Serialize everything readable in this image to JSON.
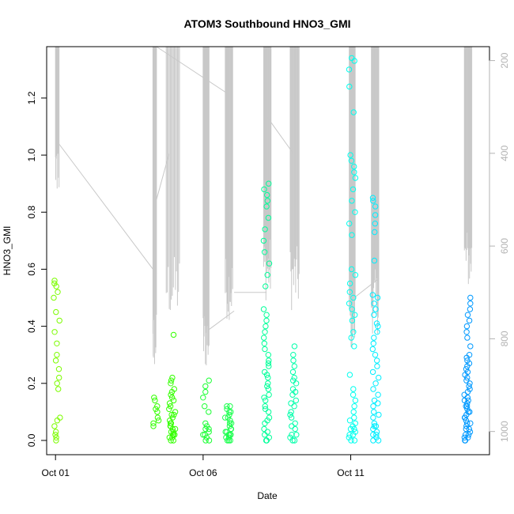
{
  "chart_data": {
    "type": "scatter",
    "title": "ATOM3 Southbound HNO3_GMI",
    "xlabel": "Date",
    "ylabel": "HNO3_GMI",
    "x_ticks": [
      {
        "day": 1,
        "label": "Oct 01"
      },
      {
        "day": 6,
        "label": "Oct 06"
      },
      {
        "day": 11,
        "label": "Oct 11"
      }
    ],
    "y_ticks": [
      0.0,
      0.2,
      0.4,
      0.6,
      0.8,
      1.0,
      1.2
    ],
    "y_tick_labels": [
      "0.0",
      "0.2",
      "0.4",
      "0.6",
      "0.8",
      "1.0",
      "1.2"
    ],
    "y2_ticks": [
      200,
      400,
      600,
      800,
      1000
    ],
    "y2_tick_labels": [
      "200",
      "400",
      "600",
      "800",
      "1000"
    ],
    "xlim": [
      "2017-09-30 17:00",
      "2017-10-15 17:00"
    ],
    "ylim": [
      -0.05,
      1.38
    ],
    "y2lim": [
      1050,
      170
    ],
    "y2_reversed": true,
    "grid": false,
    "colors": {
      "pressure_line": "#c8c8c8",
      "axis": "#000000",
      "right_axis": "#b3b3b3"
    },
    "flights": [
      {
        "day_center": 1.05,
        "color": "#7cfc00",
        "values": [
          0.0,
          0.01,
          0.02,
          0.03,
          0.05,
          0.07,
          0.08,
          0.18,
          0.2,
          0.22,
          0.25,
          0.28,
          0.3,
          0.34,
          0.38,
          0.42,
          0.45,
          0.5,
          0.52,
          0.54,
          0.55,
          0.56
        ]
      },
      {
        "day_center": 4.4,
        "color": "#33ff00",
        "values": [
          0.05,
          0.06,
          0.08,
          0.1,
          0.12,
          0.14,
          0.15,
          0.11,
          0.07
        ]
      },
      {
        "day_center": 4.95,
        "color": "#33ff00",
        "values": [
          0.0,
          0.01,
          0.02,
          0.03,
          0.04,
          0.05,
          0.06,
          0.08,
          0.1,
          0.12,
          0.14,
          0.16,
          0.18,
          0.2,
          0.22,
          0.37,
          0.01,
          0.02,
          0.03,
          0.05,
          0.07,
          0.09,
          0.11,
          0.13,
          0.15,
          0.17,
          0.21,
          0.0,
          0.02,
          0.04,
          0.06,
          0.09
        ]
      },
      {
        "day_center": 6.1,
        "color": "#1aff33",
        "values": [
          0.0,
          0.01,
          0.02,
          0.03,
          0.04,
          0.05,
          0.06,
          0.1,
          0.12,
          0.15,
          0.17,
          0.19,
          0.21,
          0.0,
          0.02,
          0.04
        ]
      },
      {
        "day_center": 6.85,
        "color": "#1aff4d",
        "values": [
          0.0,
          0.01,
          0.02,
          0.03,
          0.04,
          0.05,
          0.06,
          0.07,
          0.08,
          0.09,
          0.1,
          0.11,
          0.12,
          0.0,
          0.01,
          0.02,
          0.03,
          0.04,
          0.06,
          0.08,
          0.1,
          0.12,
          0.0,
          0.02,
          0.04
        ]
      },
      {
        "day_center": 8.15,
        "color": "#00ff99",
        "values": [
          0.0,
          0.01,
          0.02,
          0.04,
          0.06,
          0.08,
          0.1,
          0.12,
          0.14,
          0.16,
          0.18,
          0.2,
          0.22,
          0.24,
          0.26,
          0.28,
          0.3,
          0.32,
          0.34,
          0.36,
          0.38,
          0.4,
          0.42,
          0.44,
          0.46,
          0.54,
          0.58,
          0.62,
          0.66,
          0.7,
          0.74,
          0.78,
          0.82,
          0.84,
          0.86,
          0.88,
          0.9,
          0.0,
          0.03,
          0.07,
          0.11,
          0.15,
          0.19,
          0.23,
          0.27
        ]
      },
      {
        "day_center": 9.05,
        "color": "#00ffaa",
        "values": [
          0.0,
          0.01,
          0.02,
          0.04,
          0.06,
          0.08,
          0.1,
          0.12,
          0.14,
          0.16,
          0.18,
          0.2,
          0.22,
          0.24,
          0.26,
          0.28,
          0.3,
          0.33,
          0.0,
          0.02,
          0.05,
          0.09,
          0.13,
          0.17,
          0.21
        ]
      },
      {
        "day_center": 11.05,
        "color": "#00ffee",
        "values": [
          0.0,
          0.01,
          0.02,
          0.03,
          0.04,
          0.05,
          0.06,
          0.08,
          0.1,
          0.12,
          0.14,
          0.16,
          0.18,
          0.23,
          0.33,
          0.36,
          0.38,
          0.42,
          0.44,
          0.46,
          0.48,
          0.5,
          0.52,
          0.55,
          0.58,
          0.6,
          0.72,
          0.76,
          0.8,
          0.84,
          0.88,
          0.92,
          0.94,
          0.96,
          0.98,
          1.0,
          1.15,
          1.24,
          1.3,
          1.33,
          1.34,
          0.0,
          0.02,
          0.04,
          0.07
        ]
      },
      {
        "day_center": 11.85,
        "color": "#00eeff",
        "values": [
          0.0,
          0.01,
          0.02,
          0.03,
          0.04,
          0.05,
          0.06,
          0.08,
          0.1,
          0.12,
          0.14,
          0.16,
          0.18,
          0.2,
          0.22,
          0.24,
          0.26,
          0.28,
          0.3,
          0.32,
          0.34,
          0.36,
          0.38,
          0.4,
          0.41,
          0.44,
          0.46,
          0.48,
          0.5,
          0.51,
          0.63,
          0.73,
          0.76,
          0.79,
          0.82,
          0.84,
          0.85,
          0.0,
          0.02,
          0.05,
          0.09,
          0.13
        ]
      },
      {
        "day_center": 14.95,
        "color": "#0099ff",
        "values": [
          0.0,
          0.01,
          0.02,
          0.03,
          0.04,
          0.05,
          0.06,
          0.07,
          0.08,
          0.09,
          0.1,
          0.11,
          0.12,
          0.13,
          0.14,
          0.15,
          0.16,
          0.17,
          0.18,
          0.19,
          0.2,
          0.21,
          0.22,
          0.23,
          0.24,
          0.25,
          0.26,
          0.27,
          0.28,
          0.29,
          0.3,
          0.33,
          0.36,
          0.38,
          0.4,
          0.42,
          0.44,
          0.46,
          0.48,
          0.5,
          0.0,
          0.01,
          0.02,
          0.04,
          0.06,
          0.08,
          0.1,
          0.12,
          0.14
        ]
      }
    ],
    "pressure_segments": [
      {
        "x_start": 1.0,
        "x_end": 1.12,
        "p_min": 170,
        "p_max": 500
      },
      {
        "x_start": 4.3,
        "x_end": 4.42,
        "p_min": 170,
        "p_max": 870
      },
      {
        "x_start": 4.75,
        "x_end": 5.2,
        "p_min": 170,
        "p_max": 760
      },
      {
        "x_start": 6.0,
        "x_end": 6.2,
        "p_min": 170,
        "p_max": 870
      },
      {
        "x_start": 6.75,
        "x_end": 7.0,
        "p_min": 170,
        "p_max": 760
      },
      {
        "x_start": 8.05,
        "x_end": 8.3,
        "p_min": 170,
        "p_max": 720
      },
      {
        "x_start": 8.95,
        "x_end": 9.25,
        "p_min": 170,
        "p_max": 740
      },
      {
        "x_start": 10.95,
        "x_end": 11.15,
        "p_min": 170,
        "p_max": 830
      },
      {
        "x_start": 11.7,
        "x_end": 11.95,
        "p_min": 170,
        "p_max": 790
      },
      {
        "x_start": 14.85,
        "x_end": 15.1,
        "p_min": 170,
        "p_max": 700
      }
    ],
    "pressure_transits": [
      {
        "x1": 1.12,
        "p1": 380,
        "x2": 4.42,
        "p2": 660
      },
      {
        "x1": 4.42,
        "p1": 500,
        "x2": 4.85,
        "p2": 400
      },
      {
        "x1": 4.42,
        "p1": 170,
        "x2": 6.8,
        "p2": 270
      },
      {
        "x1": 6.2,
        "p1": 780,
        "x2": 7.05,
        "p2": 740
      },
      {
        "x1": 7.05,
        "p1": 700,
        "x2": 8.15,
        "p2": 700
      },
      {
        "x1": 8.15,
        "p1": 320,
        "x2": 9.05,
        "p2": 400
      },
      {
        "x1": 11.15,
        "p1": 710,
        "x2": 11.95,
        "p2": 670
      }
    ]
  }
}
